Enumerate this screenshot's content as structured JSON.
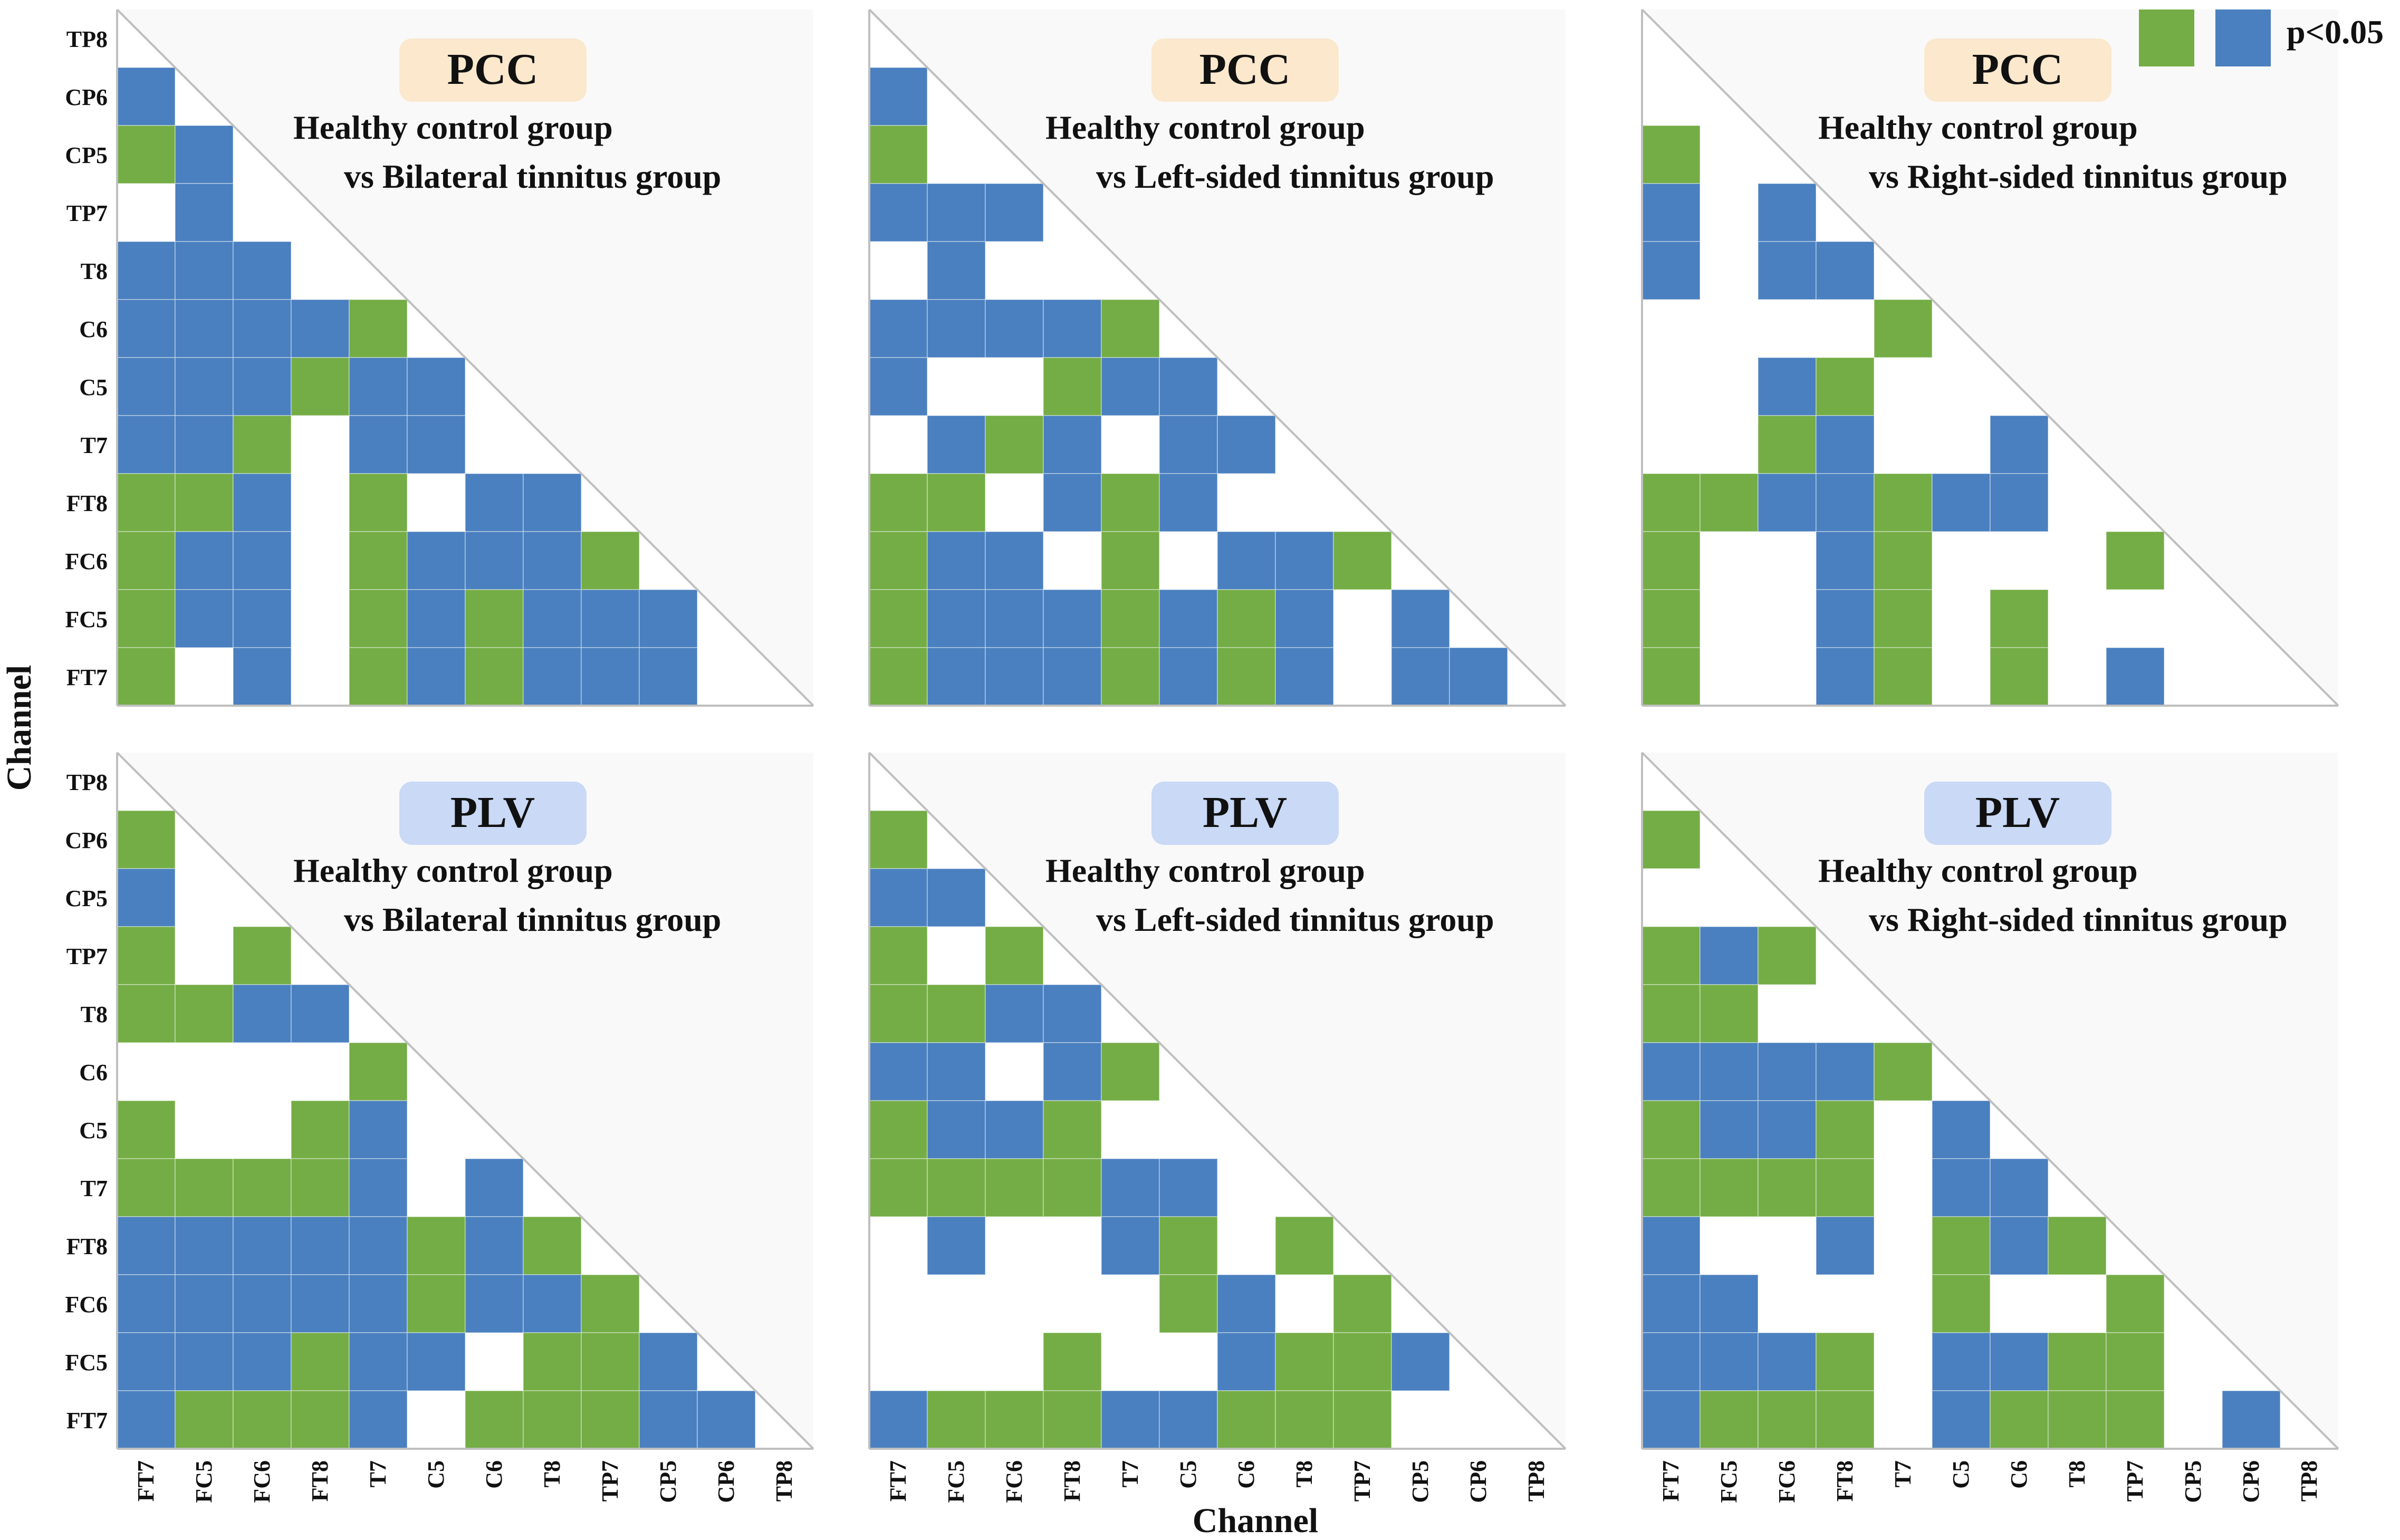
{
  "colors": {
    "green": "#74ad45",
    "blue": "#4a80bf",
    "panel_bg": "#f9f9f9",
    "pcc_badge": "#fbe8cd",
    "plv_badge": "#c9d9f6",
    "grid_line": "#bfbfbf"
  },
  "legend": {
    "label": "p<0.05"
  },
  "axis": {
    "x_label": "Channel",
    "y_label": "Channel"
  },
  "chart_data": {
    "type": "heatmap",
    "channels": [
      "FT7",
      "FC5",
      "FC6",
      "FT8",
      "T7",
      "C5",
      "C6",
      "T8",
      "TP7",
      "CP5",
      "CP6",
      "TP8"
    ],
    "row_labels_top_to_bottom": [
      "TP8",
      "CP6",
      "CP5",
      "TP7",
      "T8",
      "C6",
      "C5",
      "T7",
      "FT8",
      "FC6",
      "FC5",
      "FT7"
    ],
    "legend": "p<0.05",
    "value_codes": {
      "0": "not significant",
      "1": "significant (green)",
      "2": "significant (blue)"
    },
    "panels": [
      {
        "metric": "PCC",
        "title_line1": "Healthy control group",
        "title_line2": "vs  Bilateral tinnitus group",
        "matrix": [
          [
            2,
            0,
            0,
            0,
            0,
            0,
            0,
            0,
            0,
            0,
            0
          ],
          [
            1,
            2,
            0,
            0,
            0,
            0,
            0,
            0,
            0,
            0,
            0
          ],
          [
            0,
            2,
            0,
            0,
            0,
            0,
            0,
            0,
            0,
            0,
            0
          ],
          [
            2,
            2,
            2,
            0,
            0,
            0,
            0,
            0,
            0,
            0,
            0
          ],
          [
            2,
            2,
            2,
            2,
            1,
            0,
            0,
            0,
            0,
            0,
            0
          ],
          [
            2,
            2,
            2,
            1,
            2,
            2,
            0,
            0,
            0,
            0,
            0
          ],
          [
            2,
            2,
            1,
            0,
            2,
            2,
            0,
            0,
            0,
            0,
            0
          ],
          [
            1,
            1,
            2,
            0,
            1,
            0,
            2,
            2,
            0,
            0,
            0
          ],
          [
            1,
            2,
            2,
            0,
            1,
            2,
            2,
            2,
            1,
            0,
            0
          ],
          [
            1,
            2,
            2,
            0,
            1,
            2,
            1,
            2,
            2,
            2,
            0
          ],
          [
            1,
            0,
            2,
            0,
            1,
            2,
            1,
            2,
            2,
            2,
            0
          ]
        ]
      },
      {
        "metric": "PCC",
        "title_line1": "Healthy control group",
        "title_line2": "vs  Left-sided tinnitus group",
        "matrix": [
          [
            2,
            0,
            0,
            0,
            0,
            0,
            0,
            0,
            0,
            0,
            0
          ],
          [
            1,
            0,
            0,
            0,
            0,
            0,
            0,
            0,
            0,
            0,
            0
          ],
          [
            2,
            2,
            2,
            0,
            0,
            0,
            0,
            0,
            0,
            0,
            0
          ],
          [
            0,
            2,
            0,
            0,
            0,
            0,
            0,
            0,
            0,
            0,
            0
          ],
          [
            2,
            2,
            2,
            2,
            1,
            0,
            0,
            0,
            0,
            0,
            0
          ],
          [
            2,
            0,
            0,
            1,
            2,
            2,
            0,
            0,
            0,
            0,
            0
          ],
          [
            0,
            2,
            1,
            2,
            0,
            2,
            2,
            0,
            0,
            0,
            0
          ],
          [
            1,
            1,
            0,
            2,
            1,
            2,
            0,
            0,
            0,
            0,
            0
          ],
          [
            1,
            2,
            2,
            0,
            1,
            0,
            2,
            2,
            1,
            0,
            0
          ],
          [
            1,
            2,
            2,
            2,
            1,
            2,
            1,
            2,
            0,
            2,
            0
          ],
          [
            1,
            2,
            2,
            2,
            1,
            2,
            1,
            2,
            0,
            2,
            2
          ]
        ]
      },
      {
        "metric": "PCC",
        "title_line1": "Healthy control group",
        "title_line2": "vs  Right-sided tinnitus group",
        "matrix": [
          [
            0,
            0,
            0,
            0,
            0,
            0,
            0,
            0,
            0,
            0,
            0
          ],
          [
            1,
            0,
            0,
            0,
            0,
            0,
            0,
            0,
            0,
            0,
            0
          ],
          [
            2,
            0,
            2,
            0,
            0,
            0,
            0,
            0,
            0,
            0,
            0
          ],
          [
            2,
            0,
            2,
            2,
            0,
            0,
            0,
            0,
            0,
            0,
            0
          ],
          [
            0,
            0,
            0,
            0,
            1,
            0,
            0,
            0,
            0,
            0,
            0
          ],
          [
            0,
            0,
            2,
            1,
            0,
            0,
            0,
            0,
            0,
            0,
            0
          ],
          [
            0,
            0,
            1,
            2,
            0,
            0,
            2,
            0,
            0,
            0,
            0
          ],
          [
            1,
            1,
            2,
            2,
            1,
            2,
            2,
            0,
            0,
            0,
            0
          ],
          [
            1,
            0,
            0,
            2,
            1,
            0,
            0,
            0,
            1,
            0,
            0
          ],
          [
            1,
            0,
            0,
            2,
            1,
            0,
            1,
            0,
            0,
            0,
            0
          ],
          [
            1,
            0,
            0,
            2,
            1,
            0,
            1,
            0,
            2,
            0,
            0
          ]
        ]
      },
      {
        "metric": "PLV",
        "title_line1": "Healthy control group",
        "title_line2": "vs  Bilateral tinnitus group",
        "matrix": [
          [
            1,
            0,
            0,
            0,
            0,
            0,
            0,
            0,
            0,
            0,
            0
          ],
          [
            2,
            0,
            0,
            0,
            0,
            0,
            0,
            0,
            0,
            0,
            0
          ],
          [
            1,
            0,
            1,
            0,
            0,
            0,
            0,
            0,
            0,
            0,
            0
          ],
          [
            1,
            1,
            2,
            2,
            0,
            0,
            0,
            0,
            0,
            0,
            0
          ],
          [
            0,
            0,
            0,
            0,
            1,
            0,
            0,
            0,
            0,
            0,
            0
          ],
          [
            1,
            0,
            0,
            1,
            2,
            0,
            0,
            0,
            0,
            0,
            0
          ],
          [
            1,
            1,
            1,
            1,
            2,
            0,
            2,
            0,
            0,
            0,
            0
          ],
          [
            2,
            2,
            2,
            2,
            2,
            1,
            2,
            1,
            0,
            0,
            0
          ],
          [
            2,
            2,
            2,
            2,
            2,
            1,
            2,
            2,
            1,
            0,
            0
          ],
          [
            2,
            2,
            2,
            1,
            2,
            2,
            0,
            1,
            1,
            2,
            0
          ],
          [
            2,
            1,
            1,
            1,
            2,
            0,
            1,
            1,
            1,
            2,
            2
          ]
        ]
      },
      {
        "metric": "PLV",
        "title_line1": "Healthy control group",
        "title_line2": "vs  Left-sided tinnitus group",
        "matrix": [
          [
            1,
            0,
            0,
            0,
            0,
            0,
            0,
            0,
            0,
            0,
            0
          ],
          [
            2,
            2,
            0,
            0,
            0,
            0,
            0,
            0,
            0,
            0,
            0
          ],
          [
            1,
            0,
            1,
            0,
            0,
            0,
            0,
            0,
            0,
            0,
            0
          ],
          [
            1,
            1,
            2,
            2,
            0,
            0,
            0,
            0,
            0,
            0,
            0
          ],
          [
            2,
            2,
            0,
            2,
            1,
            0,
            0,
            0,
            0,
            0,
            0
          ],
          [
            1,
            2,
            2,
            1,
            0,
            0,
            0,
            0,
            0,
            0,
            0
          ],
          [
            1,
            1,
            1,
            1,
            2,
            2,
            0,
            0,
            0,
            0,
            0
          ],
          [
            0,
            2,
            0,
            0,
            2,
            1,
            0,
            1,
            0,
            0,
            0
          ],
          [
            0,
            0,
            0,
            0,
            0,
            1,
            2,
            0,
            1,
            0,
            0
          ],
          [
            0,
            0,
            0,
            1,
            0,
            0,
            2,
            1,
            1,
            2,
            0
          ],
          [
            2,
            1,
            1,
            1,
            2,
            2,
            1,
            1,
            1,
            0,
            0
          ]
        ]
      },
      {
        "metric": "PLV",
        "title_line1": "Healthy control group",
        "title_line2": "vs  Right-sided tinnitus group",
        "matrix": [
          [
            1,
            0,
            0,
            0,
            0,
            0,
            0,
            0,
            0,
            0,
            0
          ],
          [
            0,
            0,
            0,
            0,
            0,
            0,
            0,
            0,
            0,
            0,
            0
          ],
          [
            1,
            2,
            1,
            0,
            0,
            0,
            0,
            0,
            0,
            0,
            0
          ],
          [
            1,
            1,
            0,
            0,
            0,
            0,
            0,
            0,
            0,
            0,
            0
          ],
          [
            2,
            2,
            2,
            2,
            1,
            0,
            0,
            0,
            0,
            0,
            0
          ],
          [
            1,
            2,
            2,
            1,
            0,
            2,
            0,
            0,
            0,
            0,
            0
          ],
          [
            1,
            1,
            1,
            1,
            0,
            2,
            2,
            0,
            0,
            0,
            0
          ],
          [
            2,
            0,
            0,
            2,
            0,
            1,
            2,
            1,
            0,
            0,
            0
          ],
          [
            2,
            2,
            0,
            0,
            0,
            1,
            0,
            0,
            1,
            0,
            0
          ],
          [
            2,
            2,
            2,
            1,
            0,
            2,
            2,
            1,
            1,
            0,
            0
          ],
          [
            2,
            1,
            1,
            1,
            0,
            2,
            1,
            1,
            1,
            0,
            2
          ]
        ]
      }
    ]
  }
}
